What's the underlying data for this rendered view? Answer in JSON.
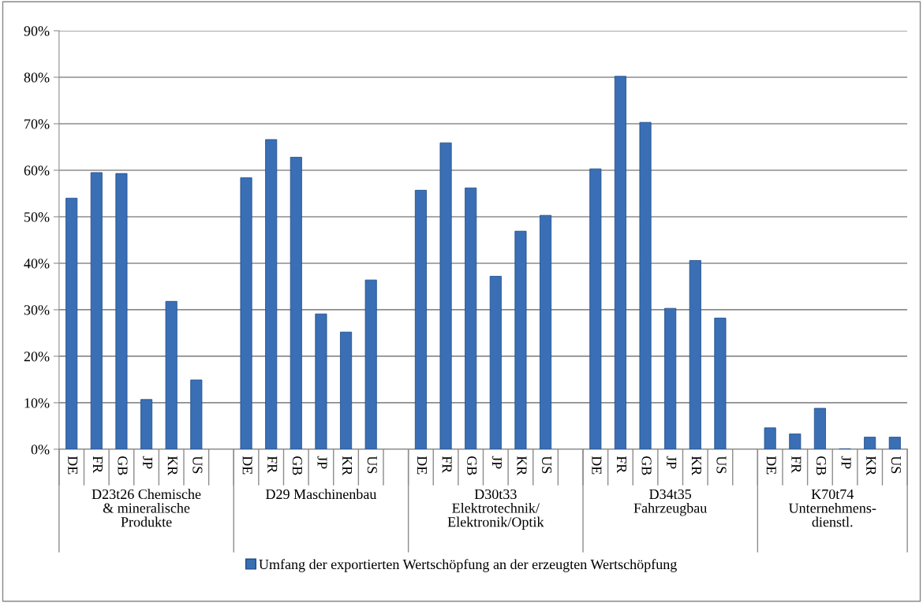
{
  "chart_data": {
    "type": "bar",
    "categories": [
      "DE",
      "FR",
      "GB",
      "JP",
      "KR",
      "US",
      null,
      "DE",
      "FR",
      "GB",
      "JP",
      "KR",
      "US",
      null,
      "DE",
      "FR",
      "GB",
      "JP",
      "KR",
      "US",
      null,
      "DE",
      "FR",
      "GB",
      "JP",
      "KR",
      "US",
      null,
      "DE",
      "FR",
      "GB",
      "JP",
      "KR",
      "US"
    ],
    "series": [
      {
        "name": "Umfang der exportierten Wertschöpfung an der erzeugten Wertschöpfung",
        "color": "#3a6fb5",
        "values": [
          54.0,
          59.5,
          59.3,
          10.7,
          31.8,
          14.9,
          null,
          58.4,
          66.6,
          62.8,
          29.1,
          25.2,
          36.4,
          null,
          55.7,
          65.9,
          56.2,
          37.2,
          46.9,
          50.3,
          null,
          60.3,
          80.2,
          70.3,
          30.3,
          40.6,
          28.2,
          null,
          4.6,
          3.3,
          8.8,
          0.1,
          2.6,
          2.6
        ]
      }
    ],
    "annotations": [
      "D23t26 Chemische\n& mineralische\nProdukte",
      "D29 Maschinenbau",
      "D30t33\nElektrotechnik/\nElektronik/Optik",
      "D34t35\nFahrzeugbau",
      "K70t74\nUnternehmens-\ndienstl."
    ],
    "ylim": [
      0,
      90
    ],
    "yticks": [
      {
        "value": 0,
        "label": "0%"
      },
      {
        "value": 10,
        "label": "10%"
      },
      {
        "value": 20,
        "label": "20%"
      },
      {
        "value": 30,
        "label": "30%"
      },
      {
        "value": 40,
        "label": "40%"
      },
      {
        "value": 50,
        "label": "50%"
      },
      {
        "value": 60,
        "label": "60%"
      },
      {
        "value": 70,
        "label": "70%"
      },
      {
        "value": 80,
        "label": "80%"
      },
      {
        "value": 90,
        "label": "90%"
      }
    ],
    "grid": "y",
    "legend": "bottom"
  }
}
